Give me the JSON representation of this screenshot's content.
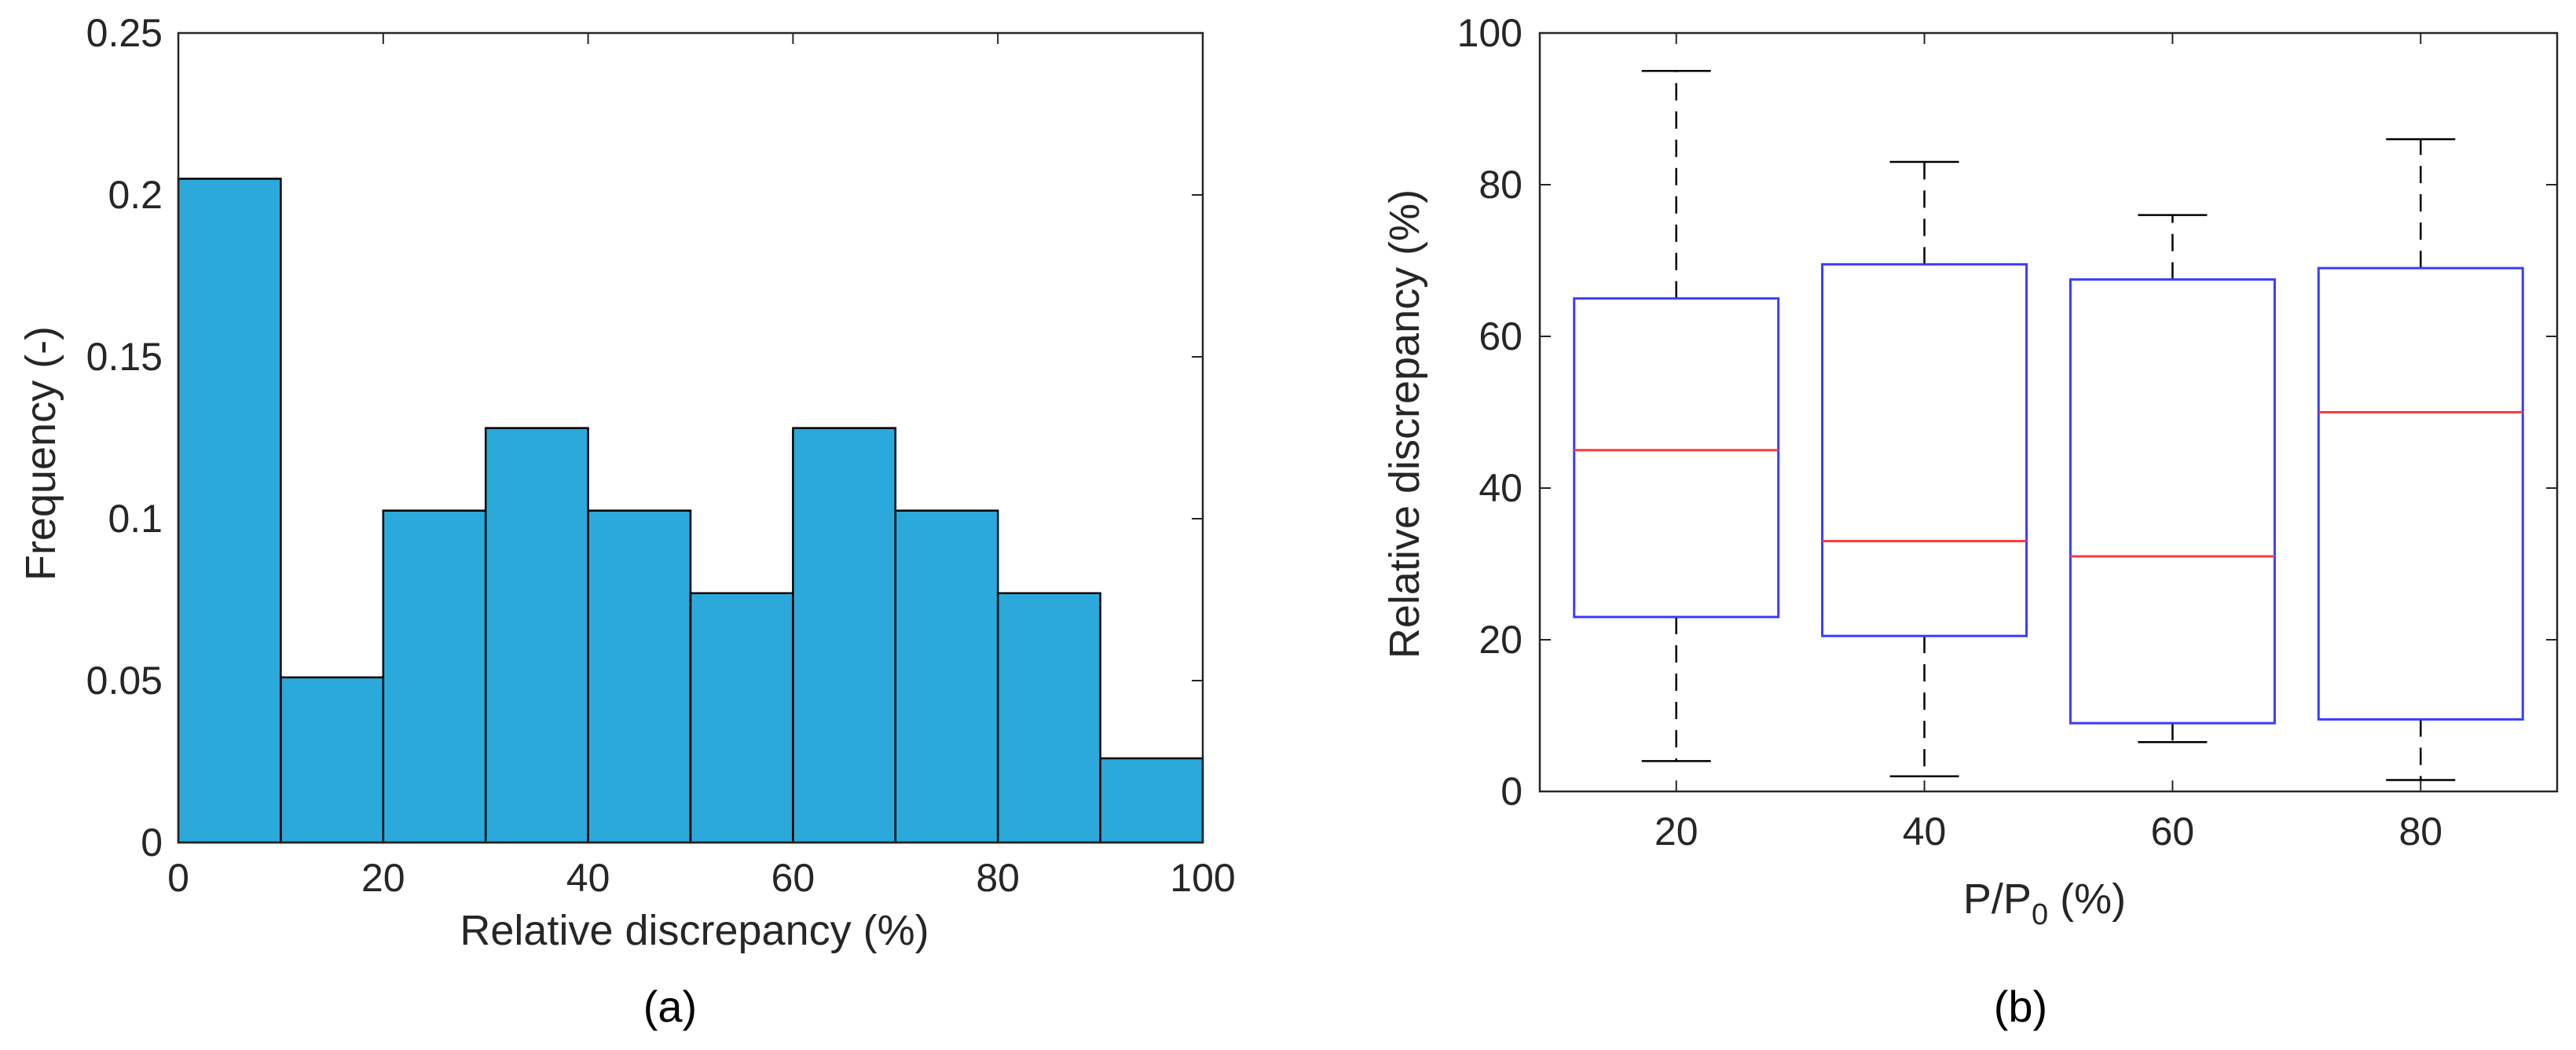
{
  "figures": {
    "colors": {
      "bar_fill": "#2aa9da",
      "bar_edge": "#000000",
      "box_edge": "#3b3bff",
      "median": "#ff3b3b",
      "whisker": "#000000",
      "axis": "#262626"
    }
  },
  "chart_data": [
    {
      "type": "bar",
      "panel_label": "(a)",
      "xlabel": "Relative discrepancy (%)",
      "ylabel": "Frequency (-)",
      "bin_edges": [
        0,
        10,
        20,
        30,
        40,
        50,
        60,
        70,
        80,
        90,
        100
      ],
      "values": [
        0.205,
        0.051,
        0.1025,
        0.128,
        0.1025,
        0.077,
        0.128,
        0.1025,
        0.077,
        0.026
      ],
      "xlim": [
        0,
        100
      ],
      "ylim": [
        0,
        0.25
      ],
      "xticks": [
        0,
        20,
        40,
        60,
        80,
        100
      ],
      "xtick_labels": [
        "0",
        "20",
        "40",
        "60",
        "80",
        "100"
      ],
      "yticks": [
        0,
        0.05,
        0.1,
        0.15,
        0.2,
        0.25
      ],
      "ytick_labels": [
        "0",
        "0.05",
        "0.1",
        "0.15",
        "0.2",
        "0.25"
      ]
    },
    {
      "type": "box",
      "panel_label": "(b)",
      "xlabel_main": "P/P",
      "xlabel_sub": "0",
      "xlabel_tail": " (%)",
      "ylabel": "Relative discrepancy (%)",
      "categories": [
        "20",
        "40",
        "60",
        "80"
      ],
      "boxes": [
        {
          "min": 4,
          "q1": 23,
          "median": 45,
          "q3": 65,
          "max": 95
        },
        {
          "min": 2,
          "q1": 20.5,
          "median": 33,
          "q3": 69.5,
          "max": 83
        },
        {
          "min": 6.5,
          "q1": 9,
          "median": 31,
          "q3": 67.5,
          "max": 76
        },
        {
          "min": 1.5,
          "q1": 9.5,
          "median": 50,
          "q3": 69,
          "max": 86
        }
      ],
      "ylim": [
        0,
        100
      ],
      "yticks": [
        0,
        20,
        40,
        60,
        80,
        100
      ],
      "ytick_labels": [
        "0",
        "20",
        "40",
        "60",
        "80",
        "100"
      ]
    }
  ]
}
